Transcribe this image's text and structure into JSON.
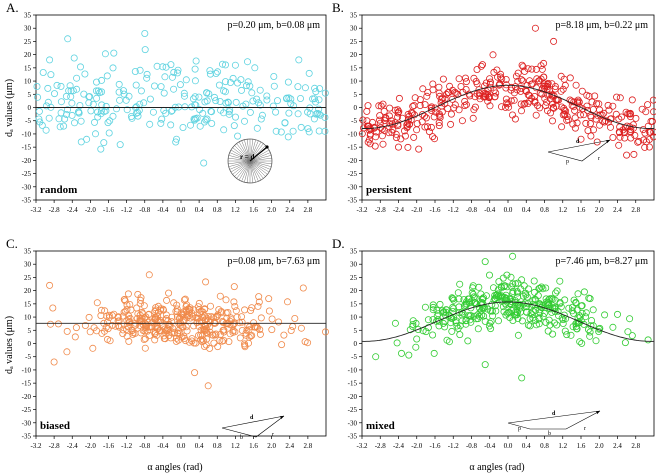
{
  "figure": {
    "xlabel": "α angles (rad)",
    "ylabel": "dₐ values (μm)"
  },
  "chart_data": [
    {
      "panel": "A.",
      "type": "scatter",
      "label": "random",
      "params": "p=0.20 μm, b=0.08 μm",
      "color": "#5fd3e0",
      "xlim": [
        -3.2,
        3.2
      ],
      "ylim": [
        -35,
        35
      ],
      "xticks": [
        "-3.2",
        "-2.8",
        "-2.4",
        "-2.0",
        "-1.6",
        "-1.2",
        "-0.8",
        "-0.4",
        "0.0",
        "0.4",
        "0.8",
        "1.2",
        "1.6",
        "2.0",
        "2.4",
        "2.8"
      ],
      "yticks": [
        35,
        30,
        25,
        20,
        15,
        10,
        5,
        0,
        -5,
        -10,
        -15,
        -20,
        -25,
        -30,
        -35
      ],
      "mean_curve": {
        "type": "constant",
        "value": 0
      },
      "inset": {
        "type": "circle",
        "label": "r = d"
      },
      "cloud": {
        "n": 260,
        "center": 2,
        "spread": 9,
        "xspread": "uniform"
      },
      "points": [
        [
          -2.9,
          18
        ],
        [
          -2.5,
          26
        ],
        [
          -2.2,
          -13
        ],
        [
          -1.5,
          15
        ],
        [
          -0.8,
          28
        ],
        [
          -0.1,
          -12
        ],
        [
          0.5,
          -21
        ],
        [
          1.2,
          16
        ],
        [
          2.1,
          -9
        ],
        [
          2.6,
          18
        ],
        [
          2.8,
          -8
        ]
      ]
    },
    {
      "panel": "B.",
      "type": "scatter",
      "label": "persistent",
      "params": "p=8.18 μm, b=0.22 μm",
      "color": "#dd2020",
      "xlim": [
        -3.2,
        3.2
      ],
      "ylim": [
        -35,
        35
      ],
      "xticks": [
        "-3.2",
        "-2.8",
        "-2.4",
        "-2.0",
        "-1.6",
        "-1.2",
        "-0.8",
        "-0.4",
        "0.0",
        "0.4",
        "0.8",
        "1.2",
        "1.6",
        "2.0",
        "2.4",
        "2.8"
      ],
      "yticks": [
        35,
        30,
        25,
        20,
        15,
        10,
        5,
        0,
        -5,
        -10,
        -15,
        -20,
        -25,
        -30,
        -35
      ],
      "mean_curve": {
        "type": "cosine",
        "amplitude": 8.18,
        "offset": 0.22
      },
      "inset": {
        "type": "triangle",
        "labels": [
          "d",
          "p",
          "r"
        ]
      },
      "cloud": {
        "n": 420,
        "center": "curve",
        "spread": 6,
        "xspread": "uniform"
      },
      "points": [
        [
          0.6,
          30
        ],
        [
          1.0,
          25
        ],
        [
          -1.0,
          -5
        ],
        [
          1.6,
          -12
        ],
        [
          -2.4,
          -15
        ],
        [
          2.6,
          -18
        ]
      ]
    },
    {
      "panel": "C.",
      "type": "scatter",
      "label": "biased",
      "params": "p=0.08 μm, b=7.63 μm",
      "color": "#f08a4b",
      "xlim": [
        -3.2,
        3.2
      ],
      "ylim": [
        -35,
        35
      ],
      "xticks": [
        "-3.2",
        "-2.8",
        "-2.4",
        "-2.0",
        "-1.6",
        "-1.2",
        "-0.8",
        "-0.4",
        "0.0",
        "0.4",
        "0.8",
        "1.2",
        "1.6",
        "2.0",
        "2.4",
        "2.8"
      ],
      "yticks": [
        35,
        30,
        25,
        20,
        15,
        10,
        5,
        0,
        -5,
        -10,
        -15,
        -20,
        -25,
        -30,
        -35
      ],
      "mean_curve": {
        "type": "constant",
        "value": 7.63
      },
      "inset": {
        "type": "triangle",
        "labels": [
          "d",
          "b",
          "r"
        ]
      },
      "cloud": {
        "n": 380,
        "center": 7.6,
        "spread": 6,
        "xspread": "normal"
      },
      "points": [
        [
          -2.9,
          22
        ],
        [
          -0.7,
          26
        ],
        [
          0.6,
          -16
        ],
        [
          2.7,
          21
        ],
        [
          -2.8,
          -7
        ],
        [
          0.3,
          -11
        ]
      ]
    },
    {
      "panel": "D.",
      "type": "scatter",
      "label": "mixed",
      "params": "p=7.46 μm, b=8.27 μm",
      "color": "#33cc33",
      "xlim": [
        -3.2,
        3.2
      ],
      "ylim": [
        -35,
        35
      ],
      "xticks": [
        "-3.2",
        "-2.8",
        "-2.4",
        "-2.0",
        "-1.6",
        "-1.2",
        "-0.8",
        "-0.4",
        "0.0",
        "0.4",
        "0.8",
        "1.2",
        "1.6",
        "2.0",
        "2.4",
        "2.8"
      ],
      "yticks": [
        35,
        30,
        25,
        20,
        15,
        10,
        5,
        0,
        -5,
        -10,
        -15,
        -20,
        -25,
        -30,
        -35
      ],
      "mean_curve": {
        "type": "cosine",
        "amplitude": 7.46,
        "offset": 8.27
      },
      "inset": {
        "type": "quad",
        "labels": [
          "d",
          "p",
          "b",
          "r"
        ]
      },
      "cloud": {
        "n": 360,
        "center": "curve",
        "spread": 6,
        "xspread": "normal"
      },
      "points": [
        [
          0.1,
          33
        ],
        [
          -0.5,
          31
        ],
        [
          1.8,
          17
        ],
        [
          -2.9,
          -5
        ],
        [
          0.3,
          -13
        ],
        [
          -0.5,
          -8
        ],
        [
          2.4,
          11
        ]
      ]
    }
  ]
}
